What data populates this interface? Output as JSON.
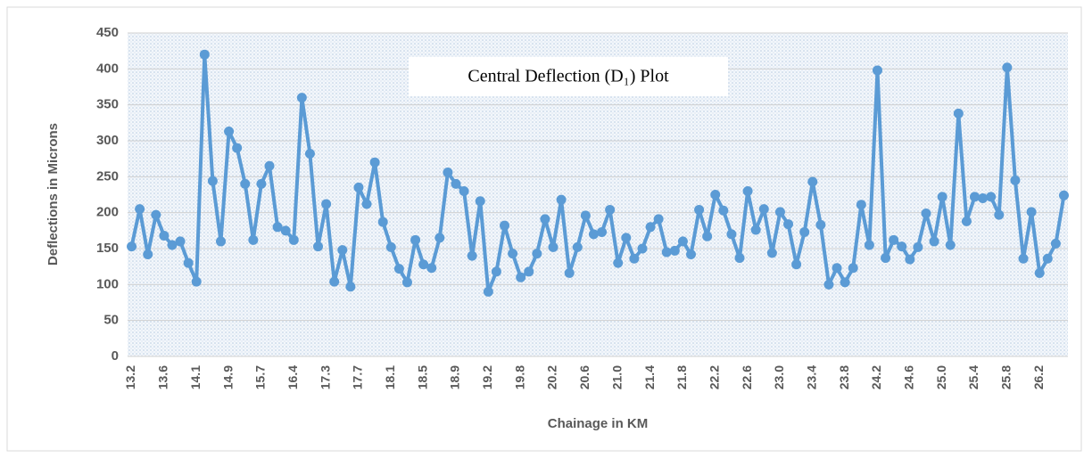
{
  "chart_data": {
    "type": "line",
    "title": "Central Deflection (D₁) Plot",
    "x_label": "Chainage in KM",
    "y_label": "Deflections in Microns",
    "categories": [
      "13.2",
      null,
      null,
      null,
      "13.6",
      null,
      null,
      null,
      "14.1",
      null,
      null,
      null,
      "14.9",
      null,
      null,
      null,
      "15.7",
      null,
      null,
      null,
      "16.4",
      null,
      null,
      null,
      "17.3",
      null,
      null,
      null,
      "17.7",
      null,
      null,
      null,
      "18.1",
      null,
      null,
      null,
      "18.5",
      null,
      null,
      null,
      "18.9",
      null,
      null,
      null,
      "19.2",
      null,
      null,
      null,
      "19.8",
      null,
      null,
      null,
      "20.2",
      null,
      null,
      null,
      "20.6",
      null,
      null,
      null,
      "21.0",
      null,
      null,
      null,
      "21.4",
      null,
      null,
      null,
      "21.8",
      null,
      null,
      null,
      "22.2",
      null,
      null,
      null,
      "22.6",
      null,
      null,
      null,
      "23.0",
      null,
      null,
      null,
      "23.4",
      null,
      null,
      null,
      "23.8",
      null,
      null,
      null,
      "24.2",
      null,
      null,
      null,
      "24.6",
      null,
      null,
      null,
      "25.0",
      null,
      null,
      null,
      "25.4",
      null,
      null,
      null,
      "25.8",
      null,
      null,
      null,
      "26.2",
      null,
      null,
      null
    ],
    "series": [
      {
        "color": "#5b9bd5",
        "values": [
          153,
          205,
          142,
          197,
          168,
          155,
          160,
          130,
          104,
          420,
          244,
          160,
          313,
          290,
          240,
          162,
          240,
          265,
          180,
          175,
          162,
          360,
          282,
          153,
          212,
          104,
          148,
          97,
          235,
          212,
          270,
          187,
          152,
          122,
          103,
          162,
          128,
          123,
          165,
          256,
          240,
          230,
          140,
          216,
          90,
          118,
          182,
          143,
          110,
          118,
          143,
          191,
          152,
          218,
          116,
          152,
          196,
          170,
          173,
          204,
          130,
          165,
          136,
          150,
          180,
          191,
          145,
          147,
          160,
          142,
          204,
          167,
          225,
          203,
          170,
          137,
          230,
          176,
          205,
          144,
          201,
          184,
          128,
          173,
          243,
          183,
          100,
          123,
          103,
          123,
          211,
          155,
          398,
          137,
          162,
          153,
          135,
          152,
          199,
          160,
          222,
          155,
          338,
          188,
          222,
          220,
          222,
          197,
          402,
          245,
          136,
          201,
          116,
          136,
          157,
          224
        ]
      }
    ],
    "ylim": [
      0,
      450
    ],
    "yticks": [
      0,
      50,
      100,
      150,
      200,
      250,
      300,
      350,
      400,
      450
    ],
    "grid": true
  }
}
